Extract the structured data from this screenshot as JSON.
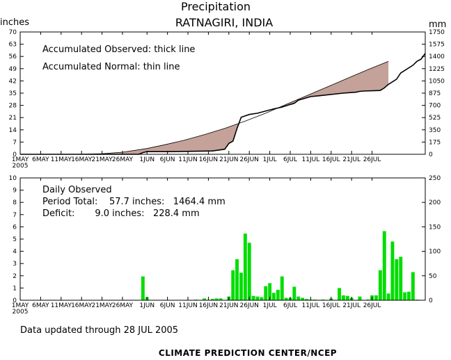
{
  "header": {
    "title": "Precipitation",
    "subtitle": "RATNAGIRI,  INDIA",
    "left_unit": "inches",
    "right_unit": "mm"
  },
  "annotations": {
    "accumulated_observed": "Accumulated Observed: thick line",
    "accumulated_normal": "Accumulated Normal: thin line",
    "daily_observed": "Daily Observed",
    "period_total": "Period Total:    57.7 inches:   1464.4 mm",
    "deficit": "Deficit:       9.0 inches:   228.4 mm"
  },
  "footer": {
    "updated": "Data updated through 28 JUL 2005",
    "credit": "CLIMATE PREDICTION CENTER/NCEP"
  },
  "x_ticks": [
    "1MAY",
    "6MAY",
    "11MAY",
    "16MAY",
    "21MAY",
    "26MAY",
    "1JUN",
    "6JUN",
    "11JUN",
    "16JUN",
    "21JUN",
    "26JUN",
    "1JUL",
    "6JUL",
    "11JUL",
    "16JUL",
    "21JUL",
    "26JUL"
  ],
  "x_year": "2005",
  "colors": {
    "deficit_fill": "#c4a199",
    "daily_bar": "#00dd00",
    "axis": "#000000"
  },
  "chart_data": [
    {
      "type": "area",
      "description_key": "accumulated",
      "x_unit": "day of period (1 = 1 MAY)",
      "ylim_left": [
        0,
        70
      ],
      "ylim_right": [
        0,
        1750
      ],
      "y_left_ticks": [
        "0",
        "7",
        "14",
        "21",
        "28",
        "35",
        "42",
        "49",
        "56",
        "63",
        "70"
      ],
      "y_right_ticks": [
        "0",
        "175",
        "350",
        "525",
        "700",
        "875",
        "1050",
        "1225",
        "1400",
        "1575",
        "1750"
      ],
      "series": [
        {
          "name": "Accumulated Normal",
          "x": [
            1,
            15,
            21,
            26,
            32,
            36,
            41,
            46,
            51,
            56,
            61,
            66,
            71,
            76,
            81,
            86,
            91
          ],
          "values": [
            0,
            0,
            0.3,
            1.2,
            3.3,
            5.3,
            8.0,
            11.2,
            14.8,
            19.0,
            23.5,
            28.5,
            33.5,
            38.5,
            43.5,
            48.5,
            53.2
          ]
        },
        {
          "name": "Accumulated Observed",
          "x": [
            1,
            30,
            31,
            32,
            38,
            48,
            51,
            52,
            53,
            54,
            55,
            57,
            59,
            63,
            65,
            67,
            68,
            69,
            72,
            74,
            80,
            83,
            84,
            85,
            89,
            90,
            91,
            93,
            94,
            95,
            97,
            98,
            99,
            100
          ],
          "values": [
            0,
            0,
            1.0,
            1.5,
            1.5,
            1.9,
            2.9,
            6.2,
            7.5,
            14.8,
            21.2,
            22.8,
            23.5,
            26.0,
            27.0,
            28.5,
            29.2,
            31.0,
            33.0,
            33.5,
            35.0,
            35.5,
            36.0,
            36.2,
            36.5,
            38.0,
            40.0,
            43.0,
            46.5,
            48.0,
            51.0,
            53.2,
            54.5,
            57.7
          ]
        }
      ],
      "xlim": [
        1,
        100
      ]
    },
    {
      "type": "bar",
      "description_key": "daily",
      "x_unit": "day of period (1 = 1 MAY)",
      "ylim_left": [
        0,
        10
      ],
      "ylim_right": [
        0,
        250
      ],
      "y_left_ticks": [
        "0",
        "1",
        "2",
        "3",
        "4",
        "5",
        "6",
        "7",
        "8",
        "9",
        "10"
      ],
      "y_right_ticks": [
        "0",
        "50",
        "100",
        "150",
        "200",
        "250"
      ],
      "series": [
        {
          "name": "Daily Observed",
          "x": [
            31,
            32,
            44,
            46,
            48,
            49,
            50,
            52,
            53,
            54,
            55,
            56,
            57,
            58,
            59,
            60,
            61,
            62,
            63,
            64,
            65,
            66,
            67,
            68,
            69,
            70,
            71,
            72,
            73,
            75,
            77,
            79,
            80,
            81,
            82,
            84,
            86,
            87,
            88,
            89,
            90,
            91,
            92,
            93,
            94,
            95,
            96,
            97,
            98
          ],
          "values": [
            1.95,
            0.25,
            0.05,
            0.15,
            0.1,
            0.15,
            0.15,
            0.3,
            2.45,
            3.35,
            2.25,
            5.45,
            4.7,
            0.35,
            0.3,
            0.25,
            1.15,
            1.4,
            0.6,
            0.85,
            1.95,
            0.2,
            0.2,
            1.1,
            0.3,
            0.2,
            0.1,
            0.05,
            0.05,
            0.05,
            0.15,
            1.0,
            0.4,
            0.35,
            0.2,
            0.3,
            0.05,
            0.4,
            0.4,
            2.45,
            5.65,
            0.55,
            4.8,
            3.35,
            3.55,
            0.65,
            0.7,
            2.3,
            0.05
          ]
        }
      ],
      "xlim": [
        1,
        100
      ]
    }
  ]
}
